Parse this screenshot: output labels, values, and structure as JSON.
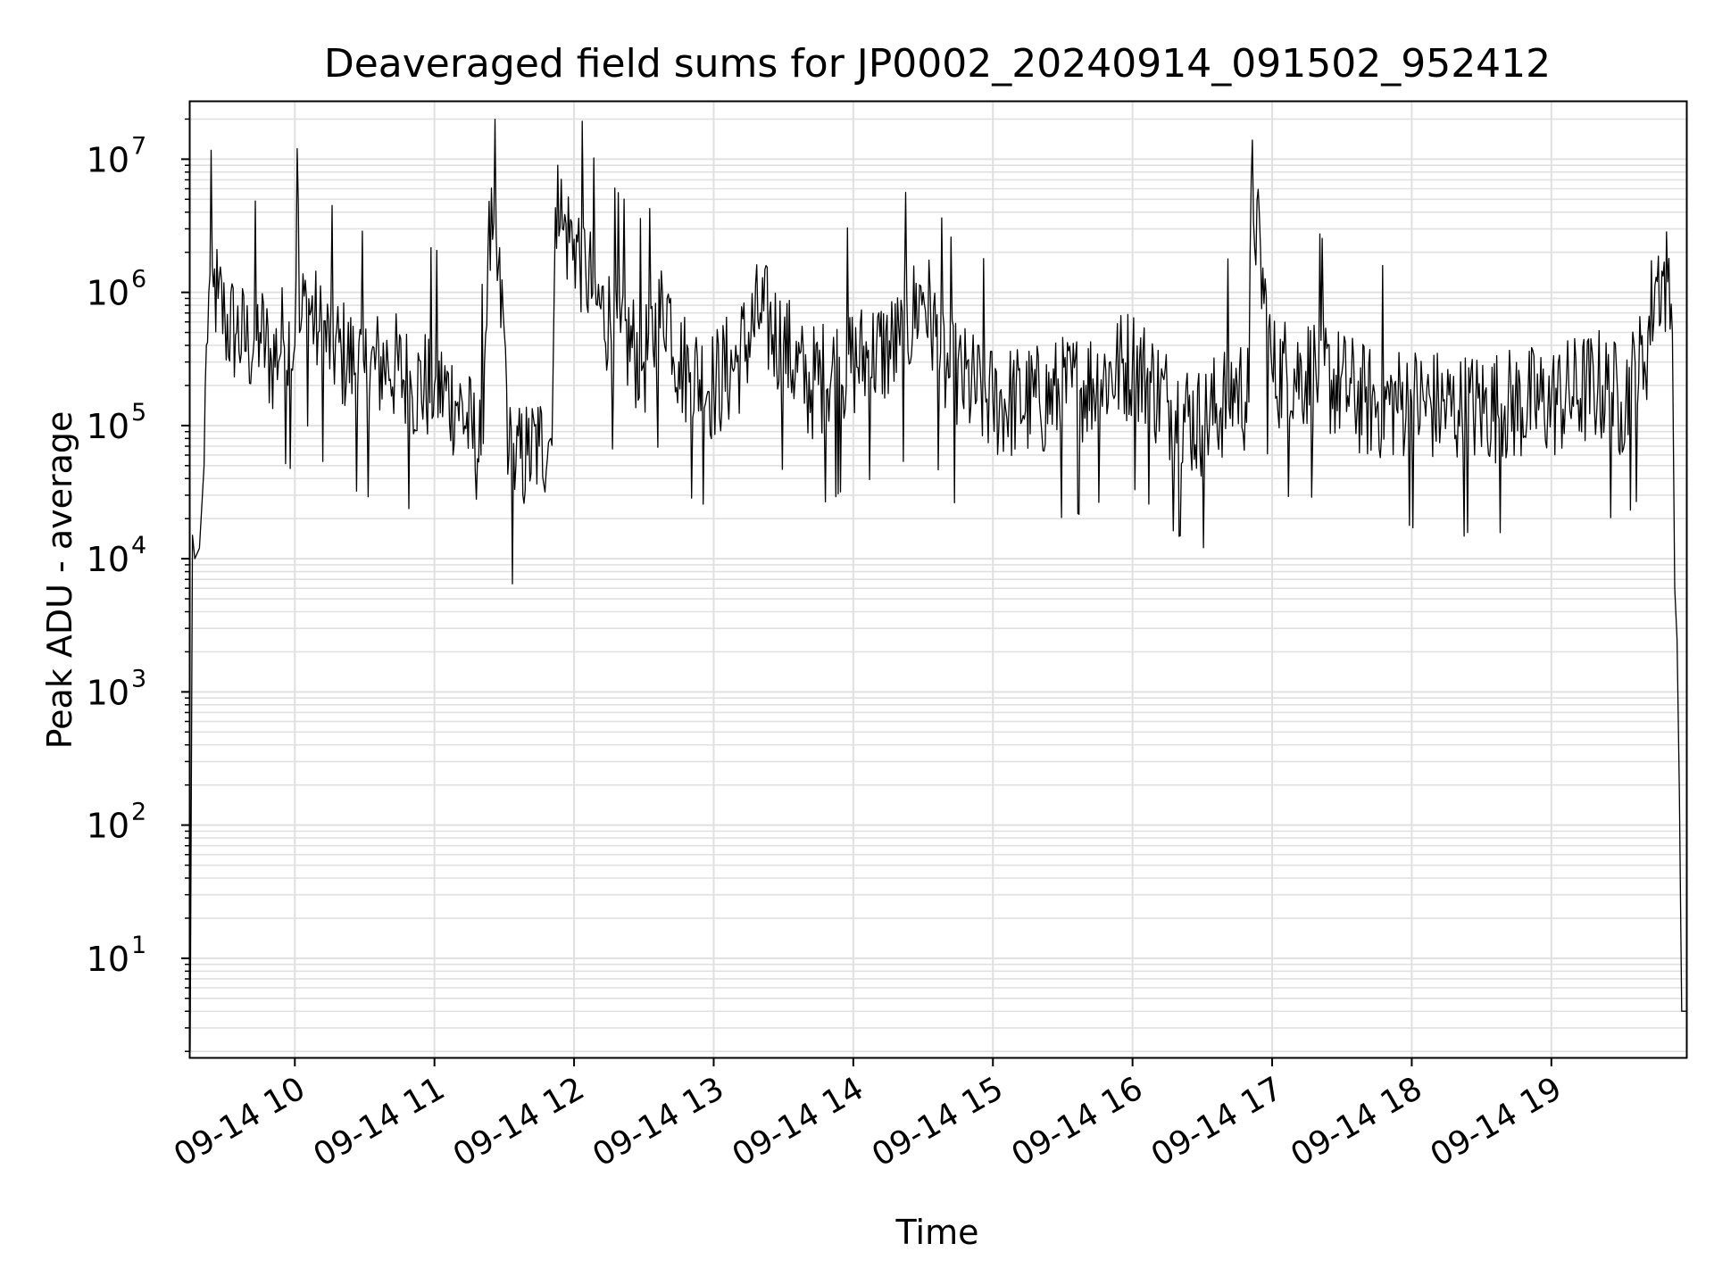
{
  "chart_data": {
    "type": "line",
    "title": "Deaveraged field sums for JP0002_20240914_091502_952412",
    "xlabel": "Time",
    "ylabel": "Peak ADU - average",
    "x_ticks": [
      "09-14 10",
      "09-14 11",
      "09-14 12",
      "09-14 13",
      "09-14 14",
      "09-14 15",
      "09-14 16",
      "09-14 17",
      "09-14 18",
      "09-14 19"
    ],
    "y_ticks": [
      {
        "base": "10",
        "exp": "1"
      },
      {
        "base": "10",
        "exp": "2"
      },
      {
        "base": "10",
        "exp": "3"
      },
      {
        "base": "10",
        "exp": "4"
      },
      {
        "base": "10",
        "exp": "5"
      },
      {
        "base": "10",
        "exp": "6"
      },
      {
        "base": "10",
        "exp": "7"
      }
    ],
    "x_range": [
      "2024-09-14 09:15",
      "2024-09-14 19:58"
    ],
    "y_scale": "log",
    "ylim": [
      1.8,
      27000000
    ],
    "grid": true,
    "line_color": "#000000",
    "grid_color": "#e0e0e0",
    "series": [
      {
        "x": [
          "2024-09-14 09:15",
          "2024-09-14 09:16",
          "2024-09-14 09:17",
          "2024-09-14 09:19",
          "2024-09-14 09:21",
          "2024-09-14 09:22",
          "2024-09-14 09:23",
          "2024-09-14 09:25",
          "2024-09-14 09:27",
          "2024-09-14 09:30",
          "2024-09-14 09:35",
          "2024-09-14 09:40",
          "2024-09-14 09:45",
          "2024-09-14 09:50",
          "2024-09-14 09:55",
          "2024-09-14 10:00",
          "2024-09-14 10:01",
          "2024-09-14 10:02",
          "2024-09-14 10:05",
          "2024-09-14 10:10",
          "2024-09-14 10:20",
          "2024-09-14 10:30",
          "2024-09-14 10:40",
          "2024-09-14 10:50",
          "2024-09-14 11:00",
          "2024-09-14 11:10",
          "2024-09-14 11:20",
          "2024-09-14 11:23",
          "2024-09-14 11:25",
          "2024-09-14 11:30",
          "2024-09-14 11:32",
          "2024-09-14 11:35",
          "2024-09-14 11:40",
          "2024-09-14 11:45",
          "2024-09-14 11:50",
          "2024-09-14 11:53",
          "2024-09-14 11:55",
          "2024-09-14 12:00",
          "2024-09-14 12:05",
          "2024-09-14 12:10",
          "2024-09-14 12:20",
          "2024-09-14 12:30",
          "2024-09-14 12:40",
          "2024-09-14 12:45",
          "2024-09-14 12:50",
          "2024-09-14 13:00",
          "2024-09-14 13:10",
          "2024-09-14 13:20",
          "2024-09-14 13:30",
          "2024-09-14 13:40",
          "2024-09-14 14:00",
          "2024-09-14 14:20",
          "2024-09-14 14:30",
          "2024-09-14 14:40",
          "2024-09-14 15:00",
          "2024-09-14 15:20",
          "2024-09-14 15:40",
          "2024-09-14 16:00",
          "2024-09-14 16:15",
          "2024-09-14 16:30",
          "2024-09-14 16:45",
          "2024-09-14 16:50",
          "2024-09-14 16:51",
          "2024-09-14 17:00",
          "2024-09-14 17:20",
          "2024-09-14 17:40",
          "2024-09-14 18:00",
          "2024-09-14 18:20",
          "2024-09-14 18:40",
          "2024-09-14 19:00",
          "2024-09-14 19:20",
          "2024-09-14 19:30",
          "2024-09-14 19:40",
          "2024-09-14 19:45",
          "2024-09-14 19:50",
          "2024-09-14 19:52",
          "2024-09-14 19:53",
          "2024-09-14 19:54",
          "2024-09-14 19:55",
          "2024-09-14 19:56",
          "2024-09-14 19:58"
        ],
        "y": [
          2,
          15000,
          10000,
          12000,
          50000,
          400000,
          1000000,
          1100000,
          900000,
          600000,
          500000,
          400000,
          500000,
          300000,
          450000,
          400000,
          12000000,
          500000,
          900000,
          500000,
          350000,
          250000,
          300000,
          200000,
          200000,
          150000,
          60000,
          2000000,
          2500000,
          500000,
          60000,
          50000,
          60000,
          70000,
          80000,
          9000000,
          3000000,
          2500000,
          1500000,
          800000,
          500000,
          300000,
          900000,
          300000,
          250000,
          200000,
          300000,
          700000,
          400000,
          200000,
          300000,
          400000,
          1000000,
          250000,
          150000,
          150000,
          200000,
          300000,
          150000,
          100000,
          200000,
          150000,
          7000000,
          250000,
          250000,
          150000,
          150000,
          130000,
          140000,
          150000,
          200000,
          150000,
          300000,
          1300000,
          1200000,
          500000,
          6000,
          2500,
          180,
          4,
          4
        ]
      }
    ]
  }
}
